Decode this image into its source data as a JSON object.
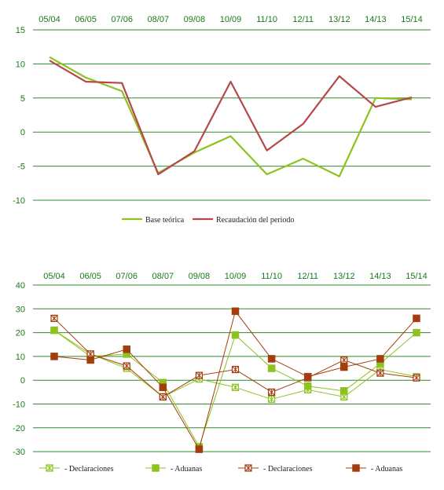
{
  "colors": {
    "grid": "#2e8b2e",
    "axis_text": "#1a7a1a",
    "light_green": "#8dc21f",
    "dark_red": "#b5484b",
    "brown": "#a33c0f"
  },
  "chart_data": [
    {
      "type": "line",
      "categories": [
        "05/04",
        "06/05",
        "07/06",
        "08/07",
        "09/08",
        "10/09",
        "11/10",
        "12/11",
        "13/12",
        "14/13",
        "15/14"
      ],
      "yticks": [
        15,
        10,
        5,
        0,
        -5,
        -10
      ],
      "ylim": [
        -10,
        15
      ],
      "grid": true,
      "legend_position": "bottom",
      "series": [
        {
          "name": "Base teórica",
          "color": "#8dc21f",
          "values": [
            11,
            8,
            6,
            -6,
            -3,
            -0.6,
            -6.2,
            -3.9,
            -6.5,
            5,
            4.8
          ]
        },
        {
          "name": "Recaudación del periodo",
          "color": "#b5484b",
          "values": [
            10.5,
            7.4,
            7.2,
            -6.2,
            -2.8,
            7.4,
            -2.7,
            1.2,
            8.2,
            3.7,
            5.1
          ]
        }
      ]
    },
    {
      "type": "line",
      "categories": [
        "05/04",
        "06/05",
        "07/06",
        "08/07",
        "09/08",
        "10/09",
        "11/10",
        "12/11",
        "13/12",
        "14/13",
        "15/14"
      ],
      "yticks": [
        40,
        30,
        20,
        10,
        0,
        -10,
        -20,
        -30
      ],
      "ylim": [
        -30,
        40
      ],
      "grid": true,
      "legend_position": "bottom",
      "series": [
        {
          "name": "- Declaraciones",
          "color": "#8dc21f",
          "marker": "star",
          "values": [
            21,
            11,
            5,
            -7,
            0.5,
            -3,
            -8,
            -4,
            -7,
            4.5,
            1.5
          ]
        },
        {
          "name": "- Aduanas",
          "color": "#8dc21f",
          "marker": "square",
          "values": [
            21,
            10,
            11,
            -1,
            -28,
            19,
            5,
            -2.5,
            -4.5,
            7,
            20
          ]
        },
        {
          "name": "- Declaraciones",
          "color": "#a33c0f",
          "marker": "star",
          "values": [
            26,
            11,
            6,
            -7,
            2,
            4.5,
            -5,
            1,
            8.5,
            3,
            1
          ]
        },
        {
          "name": "- Aduanas",
          "color": "#a33c0f",
          "marker": "square",
          "values": [
            10,
            8.5,
            13,
            -3,
            -29,
            29,
            9,
            1.5,
            5.5,
            9,
            26
          ]
        }
      ]
    }
  ]
}
